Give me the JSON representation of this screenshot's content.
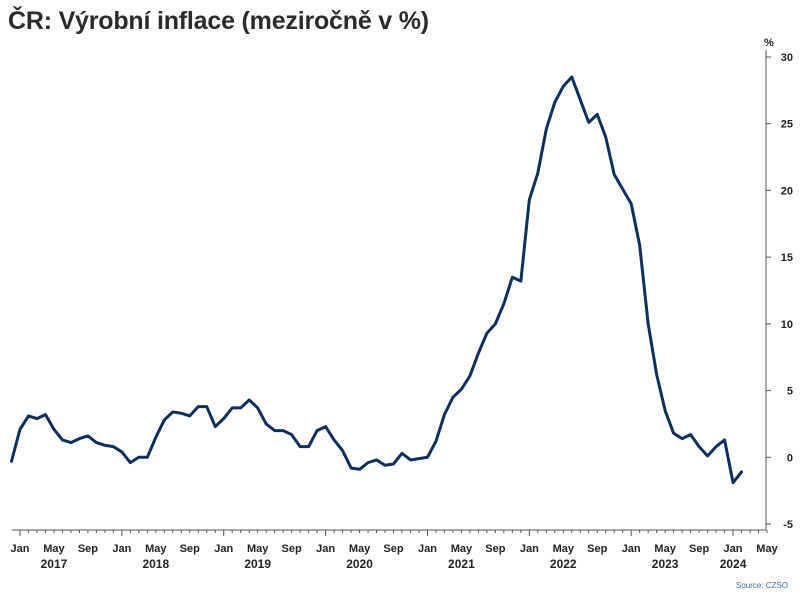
{
  "chart_data": {
    "type": "line",
    "title": "ČR: Výrobní inflace (meziročně v %)",
    "unit_label": "%",
    "source": "Source: CZSO",
    "ylim": [
      -5,
      30
    ],
    "y_ticks": [
      -5,
      0,
      5,
      10,
      15,
      20,
      25,
      30
    ],
    "x_start": "2017-01",
    "x_end": "2024-05",
    "x_tick_labels": [
      {
        "date": "2017-01",
        "label": "Jan"
      },
      {
        "date": "2017-05",
        "label": "May"
      },
      {
        "date": "2017-09",
        "label": "Sep"
      },
      {
        "date": "2018-01",
        "label": "Jan"
      },
      {
        "date": "2018-05",
        "label": "May"
      },
      {
        "date": "2018-09",
        "label": "Sep"
      },
      {
        "date": "2019-01",
        "label": "Jan"
      },
      {
        "date": "2019-05",
        "label": "May"
      },
      {
        "date": "2019-09",
        "label": "Sep"
      },
      {
        "date": "2020-01",
        "label": "Jan"
      },
      {
        "date": "2020-05",
        "label": "May"
      },
      {
        "date": "2020-09",
        "label": "Sep"
      },
      {
        "date": "2021-01",
        "label": "Jan"
      },
      {
        "date": "2021-05",
        "label": "May"
      },
      {
        "date": "2021-09",
        "label": "Sep"
      },
      {
        "date": "2022-01",
        "label": "Jan"
      },
      {
        "date": "2022-05",
        "label": "May"
      },
      {
        "date": "2022-09",
        "label": "Sep"
      },
      {
        "date": "2023-01",
        "label": "Jan"
      },
      {
        "date": "2023-05",
        "label": "May"
      },
      {
        "date": "2023-09",
        "label": "Sep"
      },
      {
        "date": "2024-01",
        "label": "Jan"
      },
      {
        "date": "2024-05",
        "label": "May"
      }
    ],
    "year_labels": [
      {
        "date": "2017-05",
        "label": "2017"
      },
      {
        "date": "2018-05",
        "label": "2018"
      },
      {
        "date": "2019-05",
        "label": "2019"
      },
      {
        "date": "2020-05",
        "label": "2020"
      },
      {
        "date": "2021-05",
        "label": "2021"
      },
      {
        "date": "2022-05",
        "label": "2022"
      },
      {
        "date": "2023-05",
        "label": "2023"
      },
      {
        "date": "2024-01",
        "label": "2024"
      }
    ],
    "series": [
      {
        "color": "#0d2f5c",
        "points": [
          {
            "date": "2016-12",
            "value": -0.3
          },
          {
            "date": "2017-01",
            "value": 2.1
          },
          {
            "date": "2017-02",
            "value": 3.1
          },
          {
            "date": "2017-03",
            "value": 2.9
          },
          {
            "date": "2017-04",
            "value": 3.2
          },
          {
            "date": "2017-05",
            "value": 2.1
          },
          {
            "date": "2017-06",
            "value": 1.3
          },
          {
            "date": "2017-07",
            "value": 1.1
          },
          {
            "date": "2017-08",
            "value": 1.4
          },
          {
            "date": "2017-09",
            "value": 1.6
          },
          {
            "date": "2017-10",
            "value": 1.1
          },
          {
            "date": "2017-11",
            "value": 0.9
          },
          {
            "date": "2017-12",
            "value": 0.8
          },
          {
            "date": "2018-01",
            "value": 0.4
          },
          {
            "date": "2018-02",
            "value": -0.4
          },
          {
            "date": "2018-03",
            "value": 0.0
          },
          {
            "date": "2018-04",
            "value": 0.0
          },
          {
            "date": "2018-05",
            "value": 1.5
          },
          {
            "date": "2018-06",
            "value": 2.8
          },
          {
            "date": "2018-07",
            "value": 3.4
          },
          {
            "date": "2018-08",
            "value": 3.3
          },
          {
            "date": "2018-09",
            "value": 3.1
          },
          {
            "date": "2018-10",
            "value": 3.8
          },
          {
            "date": "2018-11",
            "value": 3.8
          },
          {
            "date": "2018-12",
            "value": 2.3
          },
          {
            "date": "2019-01",
            "value": 2.9
          },
          {
            "date": "2019-02",
            "value": 3.7
          },
          {
            "date": "2019-03",
            "value": 3.7
          },
          {
            "date": "2019-04",
            "value": 4.3
          },
          {
            "date": "2019-05",
            "value": 3.7
          },
          {
            "date": "2019-06",
            "value": 2.5
          },
          {
            "date": "2019-07",
            "value": 2.0
          },
          {
            "date": "2019-08",
            "value": 2.0
          },
          {
            "date": "2019-09",
            "value": 1.7
          },
          {
            "date": "2019-10",
            "value": 0.8
          },
          {
            "date": "2019-11",
            "value": 0.8
          },
          {
            "date": "2019-12",
            "value": 2.0
          },
          {
            "date": "2020-01",
            "value": 2.3
          },
          {
            "date": "2020-02",
            "value": 1.3
          },
          {
            "date": "2020-03",
            "value": 0.5
          },
          {
            "date": "2020-04",
            "value": -0.8
          },
          {
            "date": "2020-05",
            "value": -0.9
          },
          {
            "date": "2020-06",
            "value": -0.4
          },
          {
            "date": "2020-07",
            "value": -0.2
          },
          {
            "date": "2020-08",
            "value": -0.6
          },
          {
            "date": "2020-09",
            "value": -0.5
          },
          {
            "date": "2020-10",
            "value": 0.3
          },
          {
            "date": "2020-11",
            "value": -0.2
          },
          {
            "date": "2020-12",
            "value": -0.1
          },
          {
            "date": "2021-01",
            "value": 0.0
          },
          {
            "date": "2021-02",
            "value": 1.2
          },
          {
            "date": "2021-03",
            "value": 3.2
          },
          {
            "date": "2021-04",
            "value": 4.5
          },
          {
            "date": "2021-05",
            "value": 5.1
          },
          {
            "date": "2021-06",
            "value": 6.1
          },
          {
            "date": "2021-07",
            "value": 7.8
          },
          {
            "date": "2021-08",
            "value": 9.3
          },
          {
            "date": "2021-09",
            "value": 10.0
          },
          {
            "date": "2021-10",
            "value": 11.5
          },
          {
            "date": "2021-11",
            "value": 13.5
          },
          {
            "date": "2021-12",
            "value": 13.2
          },
          {
            "date": "2022-01",
            "value": 19.3
          },
          {
            "date": "2022-02",
            "value": 21.3
          },
          {
            "date": "2022-03",
            "value": 24.6
          },
          {
            "date": "2022-04",
            "value": 26.6
          },
          {
            "date": "2022-05",
            "value": 27.8
          },
          {
            "date": "2022-06",
            "value": 28.5
          },
          {
            "date": "2022-07",
            "value": 26.8
          },
          {
            "date": "2022-08",
            "value": 25.1
          },
          {
            "date": "2022-09",
            "value": 25.7
          },
          {
            "date": "2022-10",
            "value": 24.0
          },
          {
            "date": "2022-11",
            "value": 21.2
          },
          {
            "date": "2022-12",
            "value": 20.1
          },
          {
            "date": "2023-01",
            "value": 19.0
          },
          {
            "date": "2023-02",
            "value": 15.9
          },
          {
            "date": "2023-03",
            "value": 10.0
          },
          {
            "date": "2023-04",
            "value": 6.2
          },
          {
            "date": "2023-05",
            "value": 3.5
          },
          {
            "date": "2023-06",
            "value": 1.8
          },
          {
            "date": "2023-07",
            "value": 1.4
          },
          {
            "date": "2023-08",
            "value": 1.7
          },
          {
            "date": "2023-09",
            "value": 0.8
          },
          {
            "date": "2023-10",
            "value": 0.1
          },
          {
            "date": "2023-11",
            "value": 0.8
          },
          {
            "date": "2023-12",
            "value": 1.3
          },
          {
            "date": "2024-01",
            "value": -1.9
          },
          {
            "date": "2024-02",
            "value": -1.1
          }
        ]
      }
    ]
  }
}
